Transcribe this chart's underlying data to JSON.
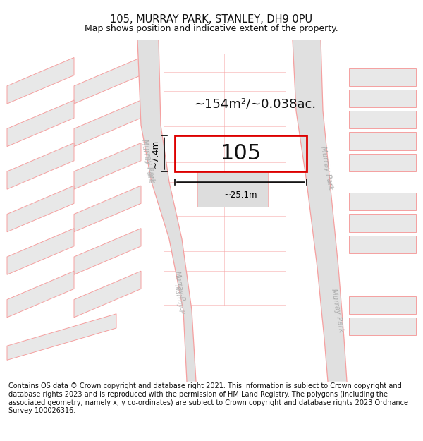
{
  "title": "105, MURRAY PARK, STANLEY, DH9 0PU",
  "subtitle": "Map shows position and indicative extent of the property.",
  "footer": "Contains OS data © Crown copyright and database right 2021. This information is subject to Crown copyright and database rights 2023 and is reproduced with the permission of HM Land Registry. The polygons (including the associated geometry, namely x, y co-ordinates) are subject to Crown copyright and database rights 2023 Ordnance Survey 100026316.",
  "title_fontsize": 10.5,
  "subtitle_fontsize": 9,
  "footer_fontsize": 7.0,
  "plot_label": "105",
  "area_label": "~154m²/~0.038ac.",
  "dim_width": "~25.1m",
  "dim_height": "~7.4m",
  "plot_color": "#dd0000",
  "road_color": "#f5a0a0",
  "road_center_color": "#cccccc",
  "block_fill": "#e8e8e8",
  "block_edge": "#f5a0a0",
  "map_bg": "#ffffff",
  "street_label_color": "#aaaaaa",
  "dim_color": "#000000",
  "label_color": "#111111"
}
